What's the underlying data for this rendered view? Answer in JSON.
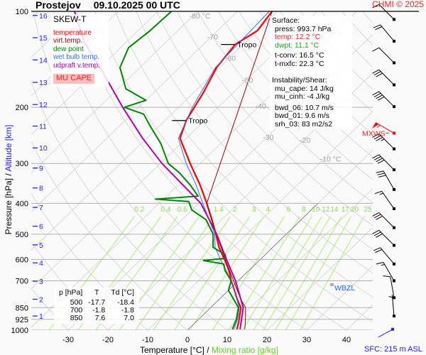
{
  "header": {
    "station": "Prostejov",
    "datetime": "09.10.2025 00 UTC",
    "copyright": "CHMI © 2025"
  },
  "legend": {
    "title": "SKEW-T",
    "items": [
      {
        "label": "temperature",
        "color": "#ff0000"
      },
      {
        "label": "virt.temp.",
        "color": "#a00000"
      },
      {
        "label": "dew point",
        "color": "#008800"
      },
      {
        "label": "wet bulb temp.",
        "color": "#3070ff"
      },
      {
        "label": "udpraft v.temp.",
        "color": "#b000b0"
      }
    ],
    "mu_cape_label": "MU CAPE"
  },
  "info": {
    "surface_title": "Surface:",
    "press": "press: 993.7 hPa",
    "temp": "temp: 12.2 °C",
    "dwpt": "dwpt: 11.1 °C",
    "tconv": "t-conv: 16.5 °C",
    "tmxfc": "t-mxfc: 22.3 °C",
    "instab_title": "Instability/Shear:",
    "mu_cape": "mu_cape: 14 J/kg",
    "mu_cinh": "mu_cinh: -4 J/kg",
    "bwd_06": "bwd_06: 10.7 m/s",
    "bwd_01": "bwd_01: 9.6 m/s",
    "srh_03": "srh_03: 83 m2/s2"
  },
  "table": {
    "headers": [
      "p [hPa]",
      "T",
      "Td [°C]"
    ],
    "rows": [
      [
        "500",
        "-17.7",
        "-18.4"
      ],
      [
        "700",
        "-1.8",
        "-1.8"
      ],
      [
        "850",
        "7.6",
        "7.0"
      ]
    ]
  },
  "labels": {
    "mxws": "MXWS",
    "wbzl": "WBZL",
    "sfc": "SFC: 215 m ASL",
    "tropo": "Tropo"
  },
  "chart_data": {
    "type": "line",
    "title": "SKEW-T",
    "xlabel": "Temperature [°C]",
    "xlabel_sep": "/",
    "xlabel2": "Mixing ratio [g/kg]",
    "ylabel": "Pressure [hPa]",
    "ylabel_sep": "/",
    "ylabel2": "Altitude [km]",
    "ylim": [
      1000,
      100
    ],
    "xlim_at_1000hPa": [
      -40,
      46
    ],
    "pressure_ticks": [
      100,
      200,
      300,
      400,
      500,
      600,
      700,
      850,
      925,
      1000
    ],
    "temperature_ticks": [
      -30,
      -20,
      -10,
      0,
      10,
      20,
      30,
      40
    ],
    "isotherm_labels": [
      {
        "T": -80,
        "text": "-80 °C",
        "p": 103
      },
      {
        "T": -70,
        "text": "-70",
        "p": 120
      },
      {
        "T": -60,
        "text": "-60",
        "p": 140
      },
      {
        "T": -50,
        "text": "-50",
        "p": 164
      },
      {
        "T": -40,
        "text": "-40",
        "p": 190
      },
      {
        "T": -30,
        "text": "-30",
        "p": 220
      },
      {
        "T": -20,
        "text": "-20",
        "p": 253
      },
      {
        "T": -10,
        "text": "-10 °C",
        "p": 290
      }
    ],
    "mixing_ratios": [
      "0.2",
      "0.4",
      "0.6",
      "1",
      "1.4",
      "2",
      "3",
      "4",
      "6",
      "8",
      "10",
      "12",
      "14",
      "17",
      "20",
      "25"
    ],
    "altitude_km": [
      {
        "km": "1",
        "p": 903
      },
      {
        "km": "2",
        "p": 800
      },
      {
        "km": "3",
        "p": 702
      },
      {
        "km": "4",
        "p": 615
      },
      {
        "km": "5",
        "p": 540
      },
      {
        "km": "6",
        "p": 472
      },
      {
        "km": "7",
        "p": 412
      },
      {
        "km": "8",
        "p": 358
      },
      {
        "km": "9",
        "p": 310
      },
      {
        "km": "10",
        "p": 268
      },
      {
        "km": "11",
        "p": 229
      },
      {
        "km": "12",
        "p": 196
      },
      {
        "km": "13",
        "p": 167
      },
      {
        "km": "14",
        "p": 142
      },
      {
        "km": "15",
        "p": 121
      },
      {
        "km": "16",
        "p": 103
      }
    ],
    "tropopause": [
      {
        "p": 220
      },
      {
        "p": 127
      }
    ],
    "series": [
      {
        "name": "temperature",
        "color": "#ff0000",
        "width": 2.2,
        "points": [
          [
            993.7,
            12.2
          ],
          [
            950,
            11
          ],
          [
            925,
            10.2
          ],
          [
            850,
            7.6
          ],
          [
            800,
            4.5
          ],
          [
            750,
            1.5
          ],
          [
            700,
            -1.8
          ],
          [
            650,
            -5
          ],
          [
            600,
            -9
          ],
          [
            550,
            -13.5
          ],
          [
            500,
            -17.7
          ],
          [
            450,
            -22.5
          ],
          [
            400,
            -28
          ],
          [
            350,
            -34.5
          ],
          [
            300,
            -42.5
          ],
          [
            250,
            -51.6
          ],
          [
            220,
            -54.6
          ],
          [
            200,
            -56
          ],
          [
            180,
            -57.5
          ],
          [
            150,
            -60.7
          ],
          [
            127,
            -62
          ],
          [
            115,
            -60
          ],
          [
            100,
            -61.3
          ]
        ]
      },
      {
        "name": "virt.temp.",
        "color": "#a00000",
        "width": 1,
        "points": [
          [
            993.7,
            14.2
          ],
          [
            925,
            11.8
          ],
          [
            850,
            8.8
          ],
          [
            800,
            5.4
          ],
          [
            700,
            -1.2
          ],
          [
            600,
            -8.8
          ],
          [
            500,
            -17.6
          ],
          [
            400,
            -28
          ],
          [
            100,
            -61.3
          ]
        ]
      },
      {
        "name": "wet bulb temp.",
        "color": "#3070ff",
        "width": 1,
        "points": [
          [
            993.7,
            11.5
          ],
          [
            925,
            9.8
          ],
          [
            850,
            7.2
          ],
          [
            700,
            -1.8
          ],
          [
            600,
            -10
          ],
          [
            550,
            -14.5
          ],
          [
            500,
            -18
          ],
          [
            400,
            -29
          ],
          [
            350,
            -35.5
          ],
          [
            300,
            -43.5
          ],
          [
            250,
            -52
          ],
          [
            200,
            -56.5
          ],
          [
            150,
            -61
          ],
          [
            100,
            -62
          ]
        ]
      },
      {
        "name": "dew point",
        "color": "#008800",
        "width": 2,
        "points": [
          [
            993.7,
            11.1
          ],
          [
            925,
            9.5
          ],
          [
            850,
            7.0
          ],
          [
            750,
            0
          ],
          [
            700,
            -1.8
          ],
          [
            650,
            -6
          ],
          [
            620,
            -8
          ],
          [
            605,
            -14
          ],
          [
            595,
            -9
          ],
          [
            580,
            -10
          ],
          [
            550,
            -15
          ],
          [
            500,
            -18.4
          ],
          [
            450,
            -24
          ],
          [
            420,
            -30
          ],
          [
            395,
            -33
          ],
          [
            388,
            -42
          ],
          [
            380,
            -32
          ],
          [
            350,
            -37
          ],
          [
            320,
            -43
          ],
          [
            300,
            -48
          ],
          [
            260,
            -55
          ],
          [
            230,
            -62
          ],
          [
            210,
            -67
          ],
          [
            200,
            -73.6
          ],
          [
            190,
            -70
          ],
          [
            175,
            -78
          ],
          [
            150,
            -85
          ],
          [
            130,
            -88
          ],
          [
            115,
            -87
          ],
          [
            100,
            -86.6
          ]
        ]
      },
      {
        "name": "udpraft v.temp.",
        "color": "#b000b0",
        "width": 2,
        "points": [
          [
            993.7,
            13
          ],
          [
            850,
            8.2
          ],
          [
            700,
            -0.7
          ],
          [
            600,
            -8.5
          ],
          [
            500,
            -17.5
          ],
          [
            400,
            -29.5
          ],
          [
            300,
            -49.6
          ],
          [
            250,
            -61
          ],
          [
            200,
            -74
          ],
          [
            150,
            -90
          ],
          [
            125,
            -100.5
          ],
          [
            100,
            -111
          ]
        ]
      }
    ],
    "wind_barbs": [
      {
        "p": 106,
        "dir": 315,
        "kt": 10
      },
      {
        "p": 124,
        "dir": 320,
        "kt": 20
      },
      {
        "p": 145,
        "dir": 315,
        "kt": 10
      },
      {
        "p": 170,
        "dir": 315,
        "kt": 30
      },
      {
        "p": 199,
        "dir": 315,
        "kt": 40
      },
      {
        "p": 241,
        "dir": 300,
        "kt": 55,
        "max": true
      },
      {
        "p": 270,
        "dir": 315,
        "kt": 35
      },
      {
        "p": 314,
        "dir": 315,
        "kt": 40
      },
      {
        "p": 362,
        "dir": 330,
        "kt": 30
      },
      {
        "p": 416,
        "dir": 325,
        "kt": 15
      },
      {
        "p": 477,
        "dir": 315,
        "kt": 30
      },
      {
        "p": 542,
        "dir": 315,
        "kt": 30
      },
      {
        "p": 620,
        "dir": 320,
        "kt": 20
      },
      {
        "p": 700,
        "dir": 330,
        "kt": 15
      },
      {
        "p": 791,
        "dir": 350,
        "kt": 10
      },
      {
        "p": 903,
        "dir": 355,
        "kt": 5
      }
    ],
    "mxws_p": 241,
    "wbzl_p": 720
  }
}
